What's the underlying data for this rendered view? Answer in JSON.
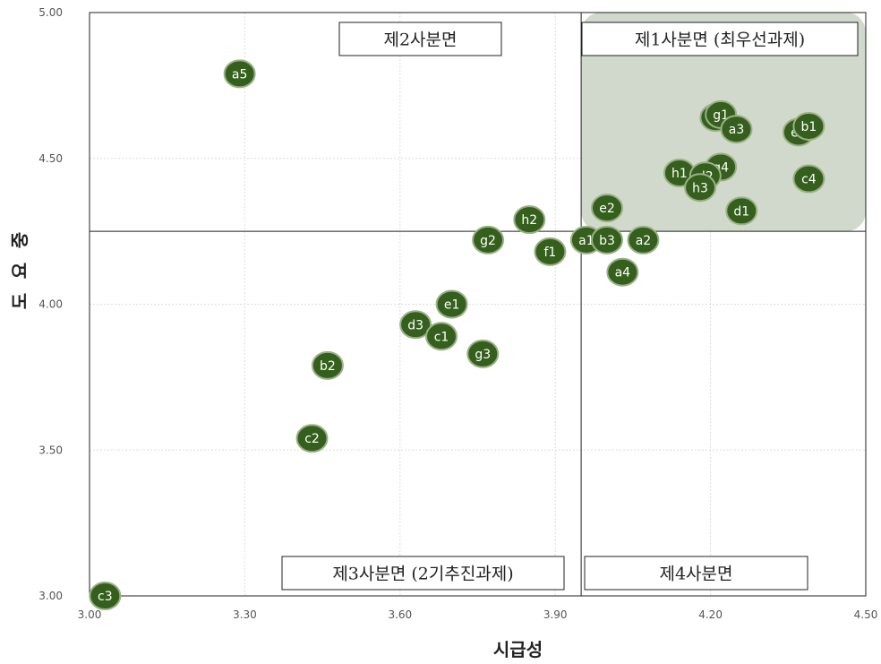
{
  "chart_data": {
    "type": "scatter",
    "xlabel": "시급성",
    "ylabel": "중요도",
    "xlim": [
      3.0,
      4.5
    ],
    "ylim": [
      3.0,
      5.0
    ],
    "xticks": [
      "3.00",
      "3.30",
      "3.60",
      "3.90",
      "4.20",
      "4.50"
    ],
    "yticks": [
      "3.00",
      "3.50",
      "4.00",
      "4.50",
      "5.00"
    ],
    "divider": {
      "x": 3.95,
      "y": 4.25
    },
    "grid": true,
    "highlight_color": "#cdd7c8",
    "point_color": "#355f1c",
    "quadrant_labels": {
      "q1": "제1사분면 (최우선과제)",
      "q2": "제2사분면",
      "q3": "제3사분면 (2기추진과제)",
      "q4": "제4사분면"
    },
    "points": [
      {
        "label": "a5",
        "x": 3.29,
        "y": 4.79
      },
      {
        "label": "f2",
        "x": 4.21,
        "y": 4.64
      },
      {
        "label": "g1",
        "x": 4.22,
        "y": 4.65
      },
      {
        "label": "a3",
        "x": 4.25,
        "y": 4.6
      },
      {
        "label": "e3",
        "x": 4.37,
        "y": 4.59
      },
      {
        "label": "b1",
        "x": 4.39,
        "y": 4.61
      },
      {
        "label": "g4",
        "x": 4.22,
        "y": 4.47
      },
      {
        "label": "h1",
        "x": 4.14,
        "y": 4.45
      },
      {
        "label": "d2",
        "x": 4.19,
        "y": 4.44
      },
      {
        "label": "h3",
        "x": 4.18,
        "y": 4.4
      },
      {
        "label": "c4",
        "x": 4.39,
        "y": 4.43
      },
      {
        "label": "d1",
        "x": 4.26,
        "y": 4.32
      },
      {
        "label": "e2",
        "x": 4.0,
        "y": 4.33
      },
      {
        "label": "h2",
        "x": 3.85,
        "y": 4.29
      },
      {
        "label": "g2",
        "x": 3.77,
        "y": 4.22
      },
      {
        "label": "f1",
        "x": 3.89,
        "y": 4.18
      },
      {
        "label": "a1",
        "x": 3.96,
        "y": 4.22
      },
      {
        "label": "b3",
        "x": 4.0,
        "y": 4.22
      },
      {
        "label": "a2",
        "x": 4.07,
        "y": 4.22
      },
      {
        "label": "a4",
        "x": 4.03,
        "y": 4.11
      },
      {
        "label": "e1",
        "x": 3.7,
        "y": 4.0
      },
      {
        "label": "d3",
        "x": 3.63,
        "y": 3.93
      },
      {
        "label": "c1",
        "x": 3.68,
        "y": 3.89
      },
      {
        "label": "g3",
        "x": 3.76,
        "y": 3.83
      },
      {
        "label": "b2",
        "x": 3.46,
        "y": 3.79
      },
      {
        "label": "c2",
        "x": 3.43,
        "y": 3.54
      },
      {
        "label": "c3",
        "x": 3.03,
        "y": 3.0
      }
    ]
  }
}
